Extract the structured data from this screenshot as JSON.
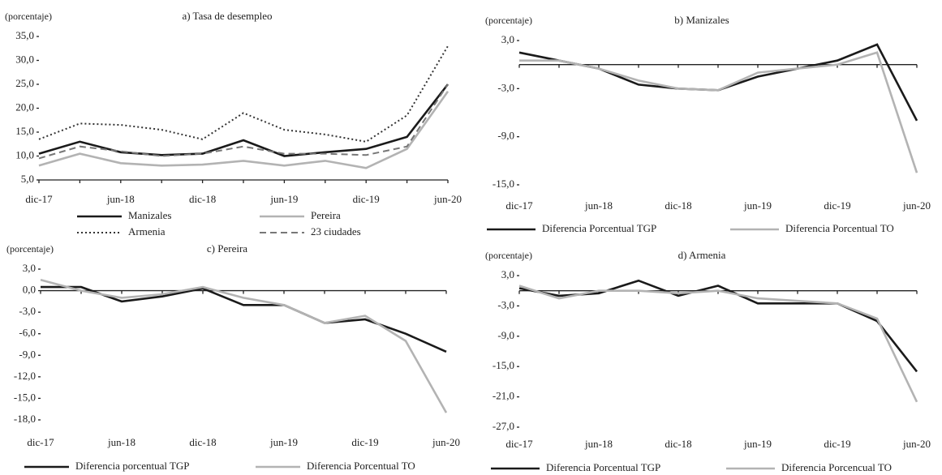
{
  "chart_data": [
    {
      "type": "line",
      "title": "a) Tasa de desempleo",
      "y_label": "(porcentaje)",
      "categories": [
        "dic-17",
        null,
        "jun-18",
        null,
        "dic-18",
        null,
        "jun-19",
        null,
        "dic-19",
        null,
        "jun-20"
      ],
      "ylim": [
        5,
        35
      ],
      "yticks": [
        {
          "value": 5,
          "label": "5,0"
        },
        {
          "value": 10,
          "label": "10,0"
        },
        {
          "value": 15,
          "label": "15,0"
        },
        {
          "value": 20,
          "label": "20,0"
        },
        {
          "value": 25,
          "label": "25,0"
        },
        {
          "value": 30,
          "label": "30,0"
        },
        {
          "value": 35,
          "label": "35,0"
        }
      ],
      "zero_line": false,
      "series": [
        {
          "name": "Manizales",
          "color": "#1a1a1a",
          "style": "solid",
          "values": [
            10.5,
            13,
            10.8,
            10.2,
            10.5,
            13.3,
            10,
            10.8,
            11.5,
            14,
            25
          ]
        },
        {
          "name": "Pereira",
          "color": "#b3b3b3",
          "style": "solid",
          "values": [
            8,
            10.5,
            8.5,
            8,
            8.2,
            9,
            8,
            9,
            7.5,
            11.5,
            23.5
          ]
        },
        {
          "name": "Armenia",
          "color": "#333333",
          "style": "dotted",
          "values": [
            13.5,
            16.8,
            16.5,
            15.5,
            13.5,
            19,
            15.5,
            14.5,
            13,
            18.5,
            33
          ]
        },
        {
          "name": "23 ciudades",
          "color": "#777777",
          "style": "dashed",
          "values": [
            9.5,
            12,
            11,
            10,
            10.5,
            12,
            10.5,
            10.5,
            10.2,
            12,
            25
          ]
        }
      ]
    },
    {
      "type": "line",
      "title": "b) Manizales",
      "y_label": "(porcentaje)",
      "categories": [
        "dic-17",
        null,
        "jun-18",
        null,
        "dic-18",
        null,
        "jun-19",
        null,
        "dic-19",
        null,
        "jun-20"
      ],
      "ylim": [
        -15,
        3
      ],
      "yticks": [
        {
          "value": -15,
          "label": "-15,0"
        },
        {
          "value": -9,
          "label": "-9,0"
        },
        {
          "value": -3,
          "label": "-3,0"
        },
        {
          "value": 3,
          "label": "3,0"
        }
      ],
      "zero_line": true,
      "series": [
        {
          "name": "Diferencia Porcentual TGP",
          "color": "#1a1a1a",
          "style": "solid",
          "values": [
            1.5,
            0.5,
            -0.5,
            -2.5,
            -3,
            -3.2,
            -1.5,
            -0.5,
            0.5,
            2.5,
            -7
          ]
        },
        {
          "name": "Diferencia Porcentual TO",
          "color": "#b3b3b3",
          "style": "solid",
          "values": [
            0.5,
            0.5,
            -0.5,
            -2,
            -3,
            -3.2,
            -1,
            -0.5,
            0,
            1.5,
            -13.5
          ]
        }
      ]
    },
    {
      "type": "line",
      "title": "c) Pereira",
      "y_label": "(porcentaje)",
      "categories": [
        "dic-17",
        null,
        "jun-18",
        null,
        "dic-18",
        null,
        "jun-19",
        null,
        "dic-19",
        null,
        "jun-20"
      ],
      "ylim": [
        -18,
        3
      ],
      "yticks": [
        {
          "value": -18,
          "label": "-18,0"
        },
        {
          "value": -15,
          "label": "-15,0"
        },
        {
          "value": -12,
          "label": "-12,0"
        },
        {
          "value": -9,
          "label": "-9,0"
        },
        {
          "value": -6,
          "label": "-6,0"
        },
        {
          "value": -3,
          "label": "-3,0"
        },
        {
          "value": 0,
          "label": "0,0"
        },
        {
          "value": 3,
          "label": "3,0"
        }
      ],
      "zero_line": true,
      "series": [
        {
          "name": "Diferencia porcentual TGP",
          "color": "#1a1a1a",
          "style": "solid",
          "values": [
            0.5,
            0.5,
            -1.5,
            -0.8,
            0.3,
            -2,
            -2,
            -4.5,
            -4,
            -6,
            -8.5
          ]
        },
        {
          "name": "Diferencia Porcentual TO",
          "color": "#b3b3b3",
          "style": "solid",
          "values": [
            1.5,
            0,
            -1,
            -0.5,
            0.5,
            -1,
            -2,
            -4.5,
            -3.5,
            -7,
            -17
          ]
        }
      ]
    },
    {
      "type": "line",
      "title": "d) Armenia",
      "y_label": "(porcentaje)",
      "categories": [
        "dic-17",
        null,
        "jun-18",
        null,
        "dic-18",
        null,
        "jun-19",
        null,
        "dic-19",
        null,
        "jun-20"
      ],
      "ylim": [
        -27,
        3
      ],
      "yticks": [
        {
          "value": -27,
          "label": "-27,0"
        },
        {
          "value": -21,
          "label": "-21,0"
        },
        {
          "value": -15,
          "label": "-15,0"
        },
        {
          "value": -9,
          "label": "-9,0"
        },
        {
          "value": -3,
          "label": "-3,0"
        },
        {
          "value": 3,
          "label": "3,0"
        }
      ],
      "zero_line": true,
      "series": [
        {
          "name": "Diferencia Porcentual TGP",
          "color": "#1a1a1a",
          "style": "solid",
          "values": [
            0.5,
            -1,
            -0.5,
            2,
            -1,
            1,
            -2.5,
            -2.5,
            -2.5,
            -6,
            -16
          ]
        },
        {
          "name": "Diferencia Porcencual TO",
          "color": "#b3b3b3",
          "style": "solid",
          "values": [
            1,
            -1.5,
            0,
            0,
            -0.5,
            0,
            -1.5,
            -2,
            -2.5,
            -5.5,
            -22
          ]
        }
      ]
    }
  ]
}
